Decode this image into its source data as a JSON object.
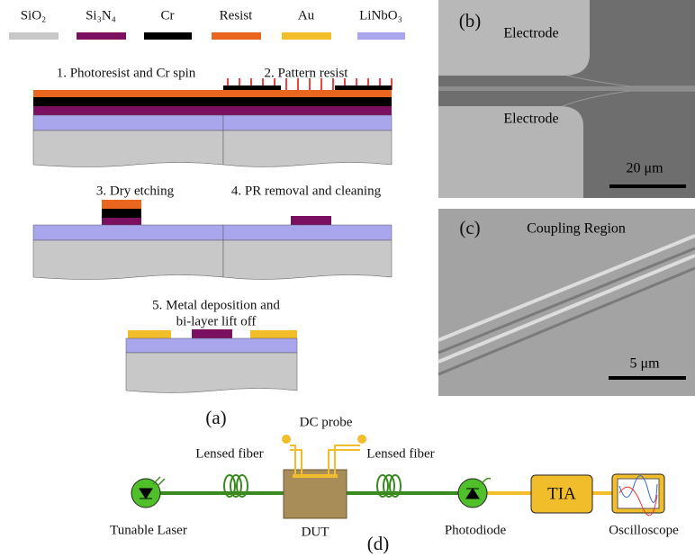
{
  "legend": [
    "SiO₂",
    "Si₃N₄",
    "Cr",
    "Resist",
    "Au",
    "LiNbO₃"
  ],
  "steps": {
    "step1": "1. Photoresist and Cr spin",
    "step2": "2. Pattern resist",
    "step3": "3. Dry etching",
    "step4": "4. PR removal and cleaning",
    "step5": [
      "5. Metal deposition and",
      "bi-layer lift off"
    ]
  },
  "panel_labels": [
    "(a)",
    "(b)",
    "(c)",
    "(d)"
  ],
  "sem_b": {
    "labels": [
      "Electrode",
      "Electrode"
    ],
    "scale": "20 μm"
  },
  "sem_c": {
    "label": "Coupling Region",
    "scale": "5 μm"
  },
  "setup": {
    "dc_probe": "DC probe",
    "lensed_fiber_left": "Lensed fiber",
    "lensed_fiber_right": "Lensed fiber",
    "laser": "Tunable Laser",
    "dut": "DUT",
    "photodiode": "Photodiode",
    "tia": "TIA",
    "oscilloscope": "Oscilloscope"
  }
}
